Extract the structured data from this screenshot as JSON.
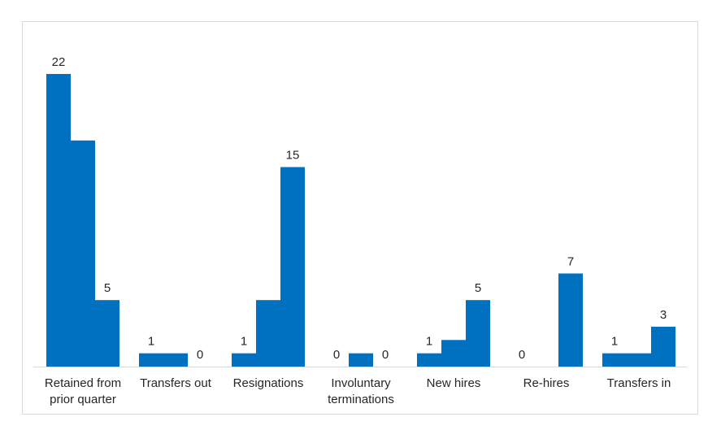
{
  "chart_data": {
    "type": "bar",
    "categories": [
      "Retained from prior quarter",
      "Transfers out",
      "Resignations",
      "Involuntary terminations",
      "New hires",
      "Re-hires",
      "Transfers in"
    ],
    "category_lines": [
      [
        "Retained from",
        "prior quarter"
      ],
      [
        "Transfers out"
      ],
      [
        "Resignations"
      ],
      [
        "Involuntary",
        "terminations"
      ],
      [
        "New hires"
      ],
      [
        "Re-hires"
      ],
      [
        "Transfers in"
      ]
    ],
    "series": [
      {
        "values": [
          22,
          1,
          1,
          0,
          1,
          0,
          1
        ]
      },
      {
        "values": [
          17,
          1,
          5,
          1,
          2,
          0,
          1
        ]
      },
      {
        "values": [
          5,
          0,
          15,
          0,
          5,
          7,
          3
        ]
      }
    ],
    "data_labels": [
      [
        0,
        0,
        "22"
      ],
      [
        0,
        2,
        "5"
      ],
      [
        1,
        0,
        "1"
      ],
      [
        1,
        2,
        "0"
      ],
      [
        2,
        0,
        "1"
      ],
      [
        2,
        2,
        "15"
      ],
      [
        3,
        0,
        "0"
      ],
      [
        3,
        2,
        "0"
      ],
      [
        4,
        0,
        "1"
      ],
      [
        4,
        2,
        "5"
      ],
      [
        5,
        0,
        "0"
      ],
      [
        5,
        2,
        "7"
      ],
      [
        6,
        0,
        "1"
      ],
      [
        6,
        2,
        "3"
      ]
    ],
    "title": "",
    "xlabel": "",
    "ylabel": "",
    "ylim": [
      0,
      22
    ],
    "grid": false,
    "legend": "none",
    "bar_color": "#0070c0"
  }
}
